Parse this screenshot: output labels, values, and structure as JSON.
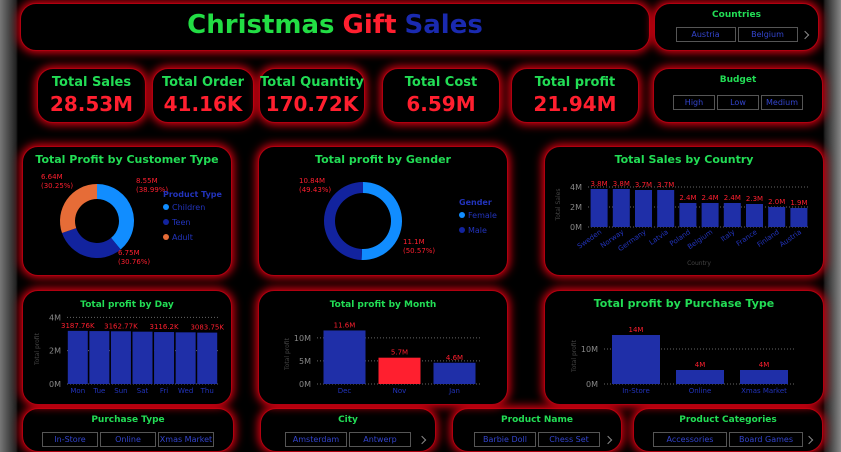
{
  "header": {
    "title_parts": [
      {
        "text": "Christmas",
        "color": "#22dd44"
      },
      {
        "text": "Gift",
        "color": "#ff1f2f"
      },
      {
        "text": "Sales",
        "color": "#1a2ab0"
      }
    ]
  },
  "kpis": [
    {
      "label": "Total Sales",
      "value": "28.53M"
    },
    {
      "label": "Total Order",
      "value": "41.16K"
    },
    {
      "label": "Total Quantity",
      "value": "170.72K"
    },
    {
      "label": "Total Cost",
      "value": "6.59M"
    },
    {
      "label": "Total profit",
      "value": "21.94M"
    }
  ],
  "slicers": [
    {
      "title": "Countries",
      "items": [
        "Austria",
        "Belgium"
      ]
    },
    {
      "title": "Budget",
      "items": [
        "High",
        "Low",
        "Medium"
      ]
    },
    {
      "title": "Purchase Type",
      "items": [
        "In-Store",
        "Online",
        "Xmas Market"
      ]
    },
    {
      "title": "City",
      "items": [
        "Amsterdam",
        "Antwerp"
      ]
    },
    {
      "title": "Product Name",
      "items": [
        "Barbie Doll",
        "Chess Set"
      ]
    },
    {
      "title": "Product Categories",
      "items": [
        "Accessories",
        "Board Games"
      ]
    }
  ],
  "chart_data": [
    {
      "type": "donut",
      "title": "Total Profit by Customer Type",
      "legend_title": "Product Type",
      "categories": [
        "Children",
        "Teen",
        "Adult"
      ],
      "values": [
        8550000,
        6750000,
        6640000
      ],
      "value_labels": [
        "8.55M",
        "6.75M",
        "6.64M"
      ],
      "percent_labels": [
        "(38.99%)",
        "(30.76%)",
        "(30.25%)"
      ],
      "colors": [
        "#118dff",
        "#12239e",
        "#e66c37"
      ]
    },
    {
      "type": "donut",
      "title": "Total profit by Gender",
      "legend_title": "Gender",
      "categories": [
        "Female",
        "Male"
      ],
      "values": [
        11100000,
        10840000
      ],
      "value_labels": [
        "11.1M",
        "10.84M"
      ],
      "percent_labels": [
        "(50.57%)",
        "(49.43%)"
      ],
      "colors": [
        "#118dff",
        "#12239e"
      ]
    },
    {
      "type": "bar",
      "title": "Total Sales by Country",
      "x_label": "Country",
      "y_label": "Total Sales",
      "categories": [
        "Sweden",
        "Norway",
        "Germany",
        "Latvia",
        "Poland",
        "Belgium",
        "Italy",
        "France",
        "Finland",
        "Austria"
      ],
      "values": [
        3800000,
        3800000,
        3700000,
        3700000,
        2400000,
        2400000,
        2400000,
        2300000,
        2000000,
        1900000
      ],
      "value_labels": [
        "3.8M",
        "3.8M",
        "3.7M",
        "3.7M",
        "2.4M",
        "2.4M",
        "2.4M",
        "2.3M",
        "2.0M",
        "1.9M"
      ],
      "colors": [
        "#1f2fa8",
        "#1f2fa8",
        "#1f2fa8",
        "#1f2fa8",
        "#1f2fa8",
        "#1f2fa8",
        "#1f2fa8",
        "#1f2fa8",
        "#1f2fa8",
        "#1f2fa8"
      ],
      "ylim": [
        0,
        4500000
      ],
      "yticks": [
        {
          "value": 0,
          "label": "0M"
        },
        {
          "value": 2000000,
          "label": "2M"
        },
        {
          "value": 4000000,
          "label": "4M"
        }
      ],
      "grid": true
    },
    {
      "type": "bar",
      "title": "Total profit by Day",
      "y_label": "Total profit",
      "categories": [
        "Mon",
        "Tue",
        "Sun",
        "Sat",
        "Fri",
        "Wed",
        "Thu"
      ],
      "values": [
        3187760,
        3175000,
        3162770,
        3140000,
        3116200,
        3100000,
        3083750
      ],
      "value_labels": [
        "3187.76K",
        null,
        "3162.77K",
        null,
        "3116.2K",
        null,
        "3083.75K"
      ],
      "colors": [
        "#1f2fa8",
        "#1f2fa8",
        "#1f2fa8",
        "#1f2fa8",
        "#1f2fa8",
        "#1f2fa8",
        "#1f2fa8"
      ],
      "ylim": [
        0,
        4200000
      ],
      "yticks": [
        {
          "value": 0,
          "label": "0M"
        },
        {
          "value": 2000000,
          "label": "2M"
        },
        {
          "value": 4000000,
          "label": "4M"
        }
      ],
      "grid": true
    },
    {
      "type": "bar",
      "title": "Total profit by Month",
      "y_label": "Total profit",
      "categories": [
        "Dec",
        "Nov",
        "Jan"
      ],
      "values": [
        11600000,
        5700000,
        4600000
      ],
      "value_labels": [
        "11.6M",
        "5.7M",
        "4.6M"
      ],
      "colors": [
        "#1f2fa8",
        "#ff1f2f",
        "#1f2fa8"
      ],
      "ylim": [
        0,
        13000000
      ],
      "yticks": [
        {
          "value": 0,
          "label": "0M"
        },
        {
          "value": 5000000,
          "label": "5M"
        },
        {
          "value": 10000000,
          "label": "10M"
        }
      ],
      "grid": true
    },
    {
      "type": "bar",
      "title": "Total profit by Purchase Type",
      "y_label": "Total profit",
      "categories": [
        "In-Store",
        "Online",
        "Xmas Market"
      ],
      "values": [
        14000000,
        4000000,
        4000000
      ],
      "value_labels": [
        "14M",
        "4M",
        "4M"
      ],
      "colors": [
        "#1f2fa8",
        "#1f2fa8",
        "#1f2fa8"
      ],
      "ylim": [
        0,
        16000000
      ],
      "yticks": [
        {
          "value": 0,
          "label": "0M"
        },
        {
          "value": 10000000,
          "label": "10M"
        }
      ],
      "grid": true
    }
  ]
}
